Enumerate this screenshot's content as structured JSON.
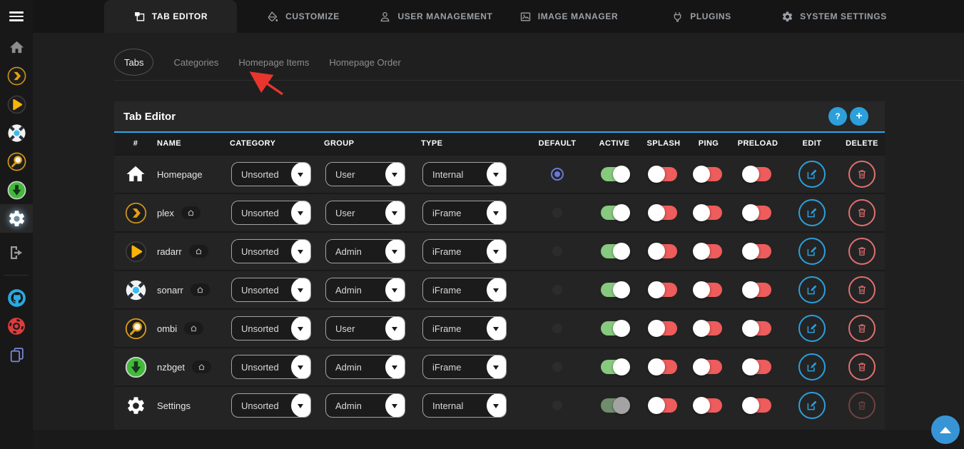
{
  "sidebar": {
    "items": [
      {
        "name": "home",
        "icon": "home-icon"
      },
      {
        "name": "plex",
        "icon": "plex-icon"
      },
      {
        "name": "radarr",
        "icon": "radarr-icon"
      },
      {
        "name": "sonarr",
        "icon": "sonarr-icon"
      },
      {
        "name": "ombi",
        "icon": "ombi-icon"
      },
      {
        "name": "nzbget",
        "icon": "nzbget-icon"
      },
      {
        "name": "settings",
        "icon": "gear-icon",
        "active": true
      },
      {
        "name": "logout",
        "icon": "logout-icon"
      },
      {
        "name": "github",
        "icon": "github-icon"
      },
      {
        "name": "support",
        "icon": "lifebuoy-icon"
      },
      {
        "name": "docs",
        "icon": "documents-icon"
      }
    ]
  },
  "topnav": {
    "tabs": [
      {
        "label": "TAB EDITOR",
        "icon": "tab-editor-icon",
        "active": true
      },
      {
        "label": "CUSTOMIZE",
        "icon": "paint-icon",
        "active": false
      },
      {
        "label": "USER MANAGEMENT",
        "icon": "user-icon",
        "active": false
      },
      {
        "label": "IMAGE MANAGER",
        "icon": "image-icon",
        "active": false
      },
      {
        "label": "PLUGINS",
        "icon": "plug-icon",
        "active": false
      },
      {
        "label": "SYSTEM SETTINGS",
        "icon": "gear-icon",
        "active": false
      }
    ]
  },
  "subnav": {
    "tabs": [
      {
        "label": "Tabs",
        "active": true
      },
      {
        "label": "Categories",
        "active": false
      },
      {
        "label": "Homepage Items",
        "active": false
      },
      {
        "label": "Homepage Order",
        "active": false
      }
    ]
  },
  "panel": {
    "title": "Tab Editor",
    "help_label": "?",
    "add_label": "+"
  },
  "table": {
    "headers": [
      "#",
      "NAME",
      "CATEGORY",
      "GROUP",
      "TYPE",
      "DEFAULT",
      "ACTIVE",
      "SPLASH",
      "PING",
      "PRELOAD",
      "EDIT",
      "DELETE"
    ],
    "rows": [
      {
        "icon": "home",
        "name": "Homepage",
        "homepage_badge": false,
        "category": "Unsorted",
        "group": "User",
        "type": "Internal",
        "default": true,
        "active": "on",
        "splash": "off",
        "ping": "off",
        "preload": "off",
        "delete": "enabled"
      },
      {
        "icon": "plex",
        "name": "plex",
        "homepage_badge": true,
        "category": "Unsorted",
        "group": "User",
        "type": "iFrame",
        "default": false,
        "active": "on",
        "splash": "off",
        "ping": "off",
        "preload": "off",
        "delete": "enabled"
      },
      {
        "icon": "radarr",
        "name": "radarr",
        "homepage_badge": true,
        "category": "Unsorted",
        "group": "Admin",
        "type": "iFrame",
        "default": false,
        "active": "on",
        "splash": "off",
        "ping": "off",
        "preload": "off",
        "delete": "enabled"
      },
      {
        "icon": "sonarr",
        "name": "sonarr",
        "homepage_badge": true,
        "category": "Unsorted",
        "group": "Admin",
        "type": "iFrame",
        "default": false,
        "active": "on",
        "splash": "off",
        "ping": "off",
        "preload": "off",
        "delete": "enabled"
      },
      {
        "icon": "ombi",
        "name": "ombi",
        "homepage_badge": true,
        "category": "Unsorted",
        "group": "User",
        "type": "iFrame",
        "default": false,
        "active": "on",
        "splash": "off",
        "ping": "off",
        "preload": "off",
        "delete": "enabled"
      },
      {
        "icon": "nzbget",
        "name": "nzbget",
        "homepage_badge": true,
        "category": "Unsorted",
        "group": "Admin",
        "type": "iFrame",
        "default": false,
        "active": "on",
        "splash": "off",
        "ping": "off",
        "preload": "off",
        "delete": "enabled"
      },
      {
        "icon": "gear",
        "name": "Settings",
        "homepage_badge": false,
        "category": "Unsorted",
        "group": "Admin",
        "type": "Internal",
        "default": false,
        "active": "on-disabled",
        "splash": "off",
        "ping": "off",
        "preload": "off",
        "delete": "disabled"
      }
    ]
  },
  "colors": {
    "accent_blue": "#2ea6e9",
    "toggle_on_green": "#87c97f",
    "toggle_off_red": "#ee5c5c",
    "radio_indigo": "#6b79d1",
    "delete_red": "#e07070",
    "annotation_arrow_red": "#e8352e"
  }
}
